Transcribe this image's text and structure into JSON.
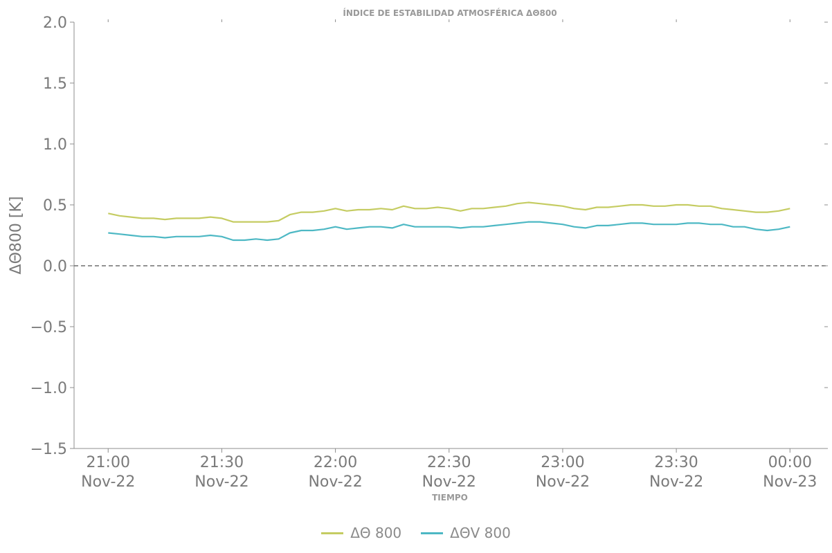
{
  "chart_data": {
    "type": "line",
    "title": "ÍNDICE DE ESTABILIDAD ATMOSFÉRICA ΔΘ800",
    "xlabel": "TIEMPO",
    "ylabel": "ΔΘ800 [K]",
    "ylim": [
      -1.5,
      2.0
    ],
    "yticks": [
      {
        "value": -1.5,
        "label": "−1.5"
      },
      {
        "value": -1.0,
        "label": "−1.0"
      },
      {
        "value": -0.5,
        "label": "−0.5"
      },
      {
        "value": 0.0,
        "label": "0.0"
      },
      {
        "value": 0.5,
        "label": "0.5"
      },
      {
        "value": 1.0,
        "label": "1.0"
      },
      {
        "value": 1.5,
        "label": "1.5"
      },
      {
        "value": 2.0,
        "label": "2.0"
      }
    ],
    "xticks": [
      {
        "time": "2022-11-22 21:00",
        "line1": "21:00",
        "line2": "Nov-22"
      },
      {
        "time": "2022-11-22 21:30",
        "line1": "21:30",
        "line2": "Nov-22"
      },
      {
        "time": "2022-11-22 22:00",
        "line1": "22:00",
        "line2": "Nov-22"
      },
      {
        "time": "2022-11-22 22:30",
        "line1": "22:30",
        "line2": "Nov-22"
      },
      {
        "time": "2022-11-22 23:00",
        "line1": "23:00",
        "line2": "Nov-22"
      },
      {
        "time": "2022-11-22 23:30",
        "line1": "23:30",
        "line2": "Nov-22"
      },
      {
        "time": "2022-11-23 00:00",
        "line1": "00:00",
        "line2": "Nov-23"
      }
    ],
    "xlim": [
      "2022-11-22 20:51",
      "2022-11-23 00:10"
    ],
    "reference_line": {
      "y": 0.0,
      "style": "dashed"
    },
    "grid": false,
    "legend_position": "bottom-center",
    "x": [
      "2022-11-22 21:00",
      "2022-11-22 21:03",
      "2022-11-22 21:06",
      "2022-11-22 21:09",
      "2022-11-22 21:12",
      "2022-11-22 21:15",
      "2022-11-22 21:18",
      "2022-11-22 21:21",
      "2022-11-22 21:24",
      "2022-11-22 21:27",
      "2022-11-22 21:30",
      "2022-11-22 21:33",
      "2022-11-22 21:36",
      "2022-11-22 21:39",
      "2022-11-22 21:42",
      "2022-11-22 21:45",
      "2022-11-22 21:48",
      "2022-11-22 21:51",
      "2022-11-22 21:54",
      "2022-11-22 21:57",
      "2022-11-22 22:00",
      "2022-11-22 22:03",
      "2022-11-22 22:06",
      "2022-11-22 22:09",
      "2022-11-22 22:12",
      "2022-11-22 22:15",
      "2022-11-22 22:18",
      "2022-11-22 22:21",
      "2022-11-22 22:24",
      "2022-11-22 22:27",
      "2022-11-22 22:30",
      "2022-11-22 22:33",
      "2022-11-22 22:36",
      "2022-11-22 22:39",
      "2022-11-22 22:42",
      "2022-11-22 22:45",
      "2022-11-22 22:48",
      "2022-11-22 22:51",
      "2022-11-22 22:54",
      "2022-11-22 22:57",
      "2022-11-22 23:00",
      "2022-11-22 23:03",
      "2022-11-22 23:06",
      "2022-11-22 23:09",
      "2022-11-22 23:12",
      "2022-11-22 23:15",
      "2022-11-22 23:18",
      "2022-11-22 23:21",
      "2022-11-22 23:24",
      "2022-11-22 23:27",
      "2022-11-22 23:30",
      "2022-11-22 23:33",
      "2022-11-22 23:36",
      "2022-11-22 23:39",
      "2022-11-22 23:42",
      "2022-11-22 23:45",
      "2022-11-22 23:48",
      "2022-11-22 23:51",
      "2022-11-22 23:54",
      "2022-11-22 23:57",
      "2022-11-23 00:00"
    ],
    "series": [
      {
        "name": "ΔΘ 800",
        "color": "#c5cc62",
        "values": [
          0.43,
          0.41,
          0.4,
          0.39,
          0.39,
          0.38,
          0.39,
          0.39,
          0.39,
          0.4,
          0.39,
          0.36,
          0.36,
          0.36,
          0.36,
          0.37,
          0.42,
          0.44,
          0.44,
          0.45,
          0.47,
          0.45,
          0.46,
          0.46,
          0.47,
          0.46,
          0.49,
          0.47,
          0.47,
          0.48,
          0.47,
          0.45,
          0.47,
          0.47,
          0.48,
          0.49,
          0.51,
          0.52,
          0.51,
          0.5,
          0.49,
          0.47,
          0.46,
          0.48,
          0.48,
          0.49,
          0.5,
          0.5,
          0.49,
          0.49,
          0.5,
          0.5,
          0.49,
          0.49,
          0.47,
          0.46,
          0.45,
          0.44,
          0.44,
          0.45,
          0.47
        ]
      },
      {
        "name": "ΔΘV 800",
        "color": "#4db8c4",
        "values": [
          0.27,
          0.26,
          0.25,
          0.24,
          0.24,
          0.23,
          0.24,
          0.24,
          0.24,
          0.25,
          0.24,
          0.21,
          0.21,
          0.22,
          0.21,
          0.22,
          0.27,
          0.29,
          0.29,
          0.3,
          0.32,
          0.3,
          0.31,
          0.32,
          0.32,
          0.31,
          0.34,
          0.32,
          0.32,
          0.32,
          0.32,
          0.31,
          0.32,
          0.32,
          0.33,
          0.34,
          0.35,
          0.36,
          0.36,
          0.35,
          0.34,
          0.32,
          0.31,
          0.33,
          0.33,
          0.34,
          0.35,
          0.35,
          0.34,
          0.34,
          0.34,
          0.35,
          0.35,
          0.34,
          0.34,
          0.32,
          0.32,
          0.3,
          0.29,
          0.3,
          0.32
        ]
      }
    ]
  }
}
